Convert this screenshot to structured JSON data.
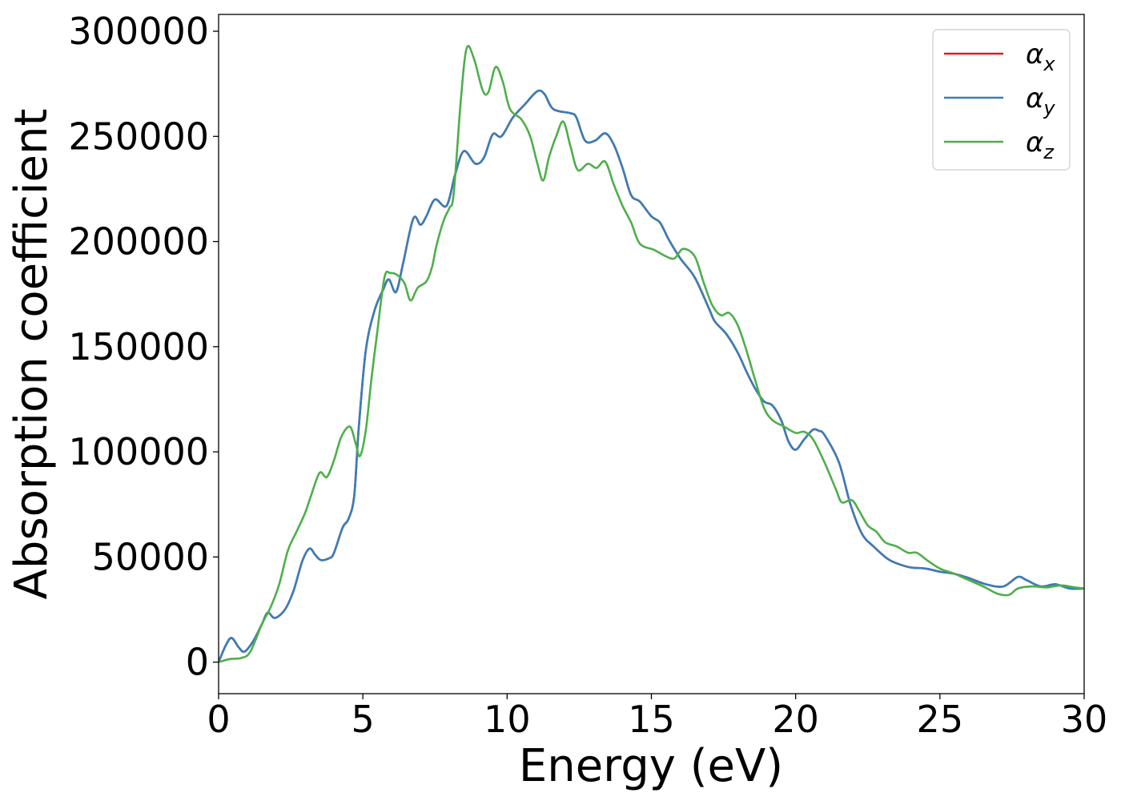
{
  "chart_data": {
    "type": "line",
    "title": "",
    "xlabel": "Energy (eV)",
    "ylabel": "Absorption coefficient",
    "xlim": [
      0,
      30
    ],
    "ylim": [
      -15000,
      308000
    ],
    "xticks": [
      0,
      5,
      10,
      15,
      20,
      25,
      30
    ],
    "yticks": [
      0,
      50000,
      100000,
      150000,
      200000,
      250000,
      300000
    ],
    "grid": false,
    "legend_position": "top-right",
    "series": [
      {
        "name": "x",
        "legend_symbol": "α",
        "color": "#e41a1c",
        "points": [
          [
            0,
            0
          ],
          [
            0.25,
            8000
          ],
          [
            0.45,
            11500
          ],
          [
            0.7,
            7000
          ],
          [
            0.9,
            5000
          ],
          [
            1.2,
            10000
          ],
          [
            1.5,
            18000
          ],
          [
            1.7,
            23500
          ],
          [
            1.95,
            21000
          ],
          [
            2.3,
            25000
          ],
          [
            2.6,
            34000
          ],
          [
            2.9,
            48000
          ],
          [
            3.15,
            54000
          ],
          [
            3.35,
            51000
          ],
          [
            3.55,
            48500
          ],
          [
            3.85,
            49500
          ],
          [
            4.0,
            52000
          ],
          [
            4.3,
            64000
          ],
          [
            4.5,
            68000
          ],
          [
            4.7,
            79000
          ],
          [
            4.85,
            110000
          ],
          [
            5.1,
            148000
          ],
          [
            5.4,
            167000
          ],
          [
            5.7,
            177000
          ],
          [
            5.9,
            182000
          ],
          [
            6.15,
            176000
          ],
          [
            6.4,
            190000
          ],
          [
            6.75,
            211000
          ],
          [
            7.0,
            208000
          ],
          [
            7.2,
            212000
          ],
          [
            7.5,
            220000
          ],
          [
            7.9,
            217000
          ],
          [
            8.2,
            232000
          ],
          [
            8.5,
            243000
          ],
          [
            8.9,
            237000
          ],
          [
            9.2,
            240000
          ],
          [
            9.5,
            251000
          ],
          [
            9.8,
            250000
          ],
          [
            10.2,
            259000
          ],
          [
            10.6,
            265000
          ],
          [
            11.05,
            271500
          ],
          [
            11.3,
            270000
          ],
          [
            11.6,
            263000
          ],
          [
            12.2,
            261000
          ],
          [
            12.4,
            259000
          ],
          [
            12.7,
            248000
          ],
          [
            13.05,
            248000
          ],
          [
            13.4,
            251500
          ],
          [
            13.7,
            246000
          ],
          [
            14.0,
            235000
          ],
          [
            14.3,
            222000
          ],
          [
            14.6,
            219000
          ],
          [
            15.0,
            212000
          ],
          [
            15.3,
            209000
          ],
          [
            15.6,
            201000
          ],
          [
            16.0,
            192000
          ],
          [
            16.5,
            183000
          ],
          [
            17.0,
            168000
          ],
          [
            17.2,
            162000
          ],
          [
            17.6,
            156000
          ],
          [
            18.0,
            147000
          ],
          [
            18.3,
            138000
          ],
          [
            18.6,
            130000
          ],
          [
            18.9,
            124000
          ],
          [
            19.2,
            122000
          ],
          [
            19.5,
            115000
          ],
          [
            19.75,
            105000
          ],
          [
            20.0,
            101000
          ],
          [
            20.3,
            106000
          ],
          [
            20.6,
            110500
          ],
          [
            20.8,
            110000
          ],
          [
            21.0,
            108000
          ],
          [
            21.5,
            95000
          ],
          [
            21.9,
            75000
          ],
          [
            22.3,
            61000
          ],
          [
            22.7,
            55000
          ],
          [
            23.2,
            49000
          ],
          [
            23.6,
            46500
          ],
          [
            24.0,
            45000
          ],
          [
            24.5,
            44500
          ],
          [
            25.0,
            43000
          ],
          [
            25.5,
            42000
          ],
          [
            26.0,
            40000
          ],
          [
            26.6,
            37000
          ],
          [
            27.2,
            36000
          ],
          [
            27.7,
            40500
          ],
          [
            28.0,
            39000
          ],
          [
            28.5,
            36000
          ],
          [
            29.0,
            37000
          ],
          [
            29.5,
            35000
          ],
          [
            30.0,
            35000
          ]
        ]
      },
      {
        "name": "y",
        "legend_symbol": "α",
        "color": "#377eb8",
        "points": [
          [
            0,
            0
          ],
          [
            0.25,
            8000
          ],
          [
            0.45,
            11500
          ],
          [
            0.7,
            7000
          ],
          [
            0.9,
            5000
          ],
          [
            1.2,
            10000
          ],
          [
            1.5,
            18000
          ],
          [
            1.7,
            23500
          ],
          [
            1.95,
            21000
          ],
          [
            2.3,
            25000
          ],
          [
            2.6,
            34000
          ],
          [
            2.9,
            48000
          ],
          [
            3.15,
            54000
          ],
          [
            3.35,
            51000
          ],
          [
            3.55,
            48500
          ],
          [
            3.85,
            49500
          ],
          [
            4.0,
            52000
          ],
          [
            4.3,
            64000
          ],
          [
            4.5,
            68000
          ],
          [
            4.7,
            79000
          ],
          [
            4.85,
            110000
          ],
          [
            5.1,
            148000
          ],
          [
            5.4,
            167000
          ],
          [
            5.7,
            177000
          ],
          [
            5.9,
            182000
          ],
          [
            6.15,
            176000
          ],
          [
            6.4,
            190000
          ],
          [
            6.75,
            211000
          ],
          [
            7.0,
            208000
          ],
          [
            7.2,
            212000
          ],
          [
            7.5,
            220000
          ],
          [
            7.9,
            217000
          ],
          [
            8.2,
            232000
          ],
          [
            8.5,
            243000
          ],
          [
            8.9,
            237000
          ],
          [
            9.2,
            240000
          ],
          [
            9.5,
            251000
          ],
          [
            9.8,
            250000
          ],
          [
            10.2,
            259000
          ],
          [
            10.6,
            265000
          ],
          [
            11.05,
            271500
          ],
          [
            11.3,
            270000
          ],
          [
            11.6,
            263000
          ],
          [
            12.2,
            261000
          ],
          [
            12.4,
            259000
          ],
          [
            12.7,
            248000
          ],
          [
            13.05,
            248000
          ],
          [
            13.4,
            251500
          ],
          [
            13.7,
            246000
          ],
          [
            14.0,
            235000
          ],
          [
            14.3,
            222000
          ],
          [
            14.6,
            219000
          ],
          [
            15.0,
            212000
          ],
          [
            15.3,
            209000
          ],
          [
            15.6,
            201000
          ],
          [
            16.0,
            192000
          ],
          [
            16.5,
            183000
          ],
          [
            17.0,
            168000
          ],
          [
            17.2,
            162000
          ],
          [
            17.6,
            156000
          ],
          [
            18.0,
            147000
          ],
          [
            18.3,
            138000
          ],
          [
            18.6,
            130000
          ],
          [
            18.9,
            124000
          ],
          [
            19.2,
            122000
          ],
          [
            19.5,
            115000
          ],
          [
            19.75,
            105000
          ],
          [
            20.0,
            101000
          ],
          [
            20.3,
            106000
          ],
          [
            20.6,
            110500
          ],
          [
            20.8,
            110000
          ],
          [
            21.0,
            108000
          ],
          [
            21.5,
            95000
          ],
          [
            21.9,
            75000
          ],
          [
            22.3,
            61000
          ],
          [
            22.7,
            55000
          ],
          [
            23.2,
            49000
          ],
          [
            23.6,
            46500
          ],
          [
            24.0,
            45000
          ],
          [
            24.5,
            44500
          ],
          [
            25.0,
            43000
          ],
          [
            25.5,
            42000
          ],
          [
            26.0,
            40000
          ],
          [
            26.6,
            37000
          ],
          [
            27.2,
            36000
          ],
          [
            27.7,
            40500
          ],
          [
            28.0,
            39000
          ],
          [
            28.5,
            36000
          ],
          [
            29.0,
            37000
          ],
          [
            29.5,
            35000
          ],
          [
            30.0,
            35000
          ]
        ]
      },
      {
        "name": "z",
        "legend_symbol": "α",
        "color": "#4daf4a",
        "points": [
          [
            0,
            0
          ],
          [
            0.4,
            1500
          ],
          [
            0.8,
            2000
          ],
          [
            1.1,
            5000
          ],
          [
            1.5,
            18000
          ],
          [
            1.8,
            26000
          ],
          [
            2.1,
            37000
          ],
          [
            2.4,
            53000
          ],
          [
            2.7,
            62000
          ],
          [
            3.0,
            71000
          ],
          [
            3.2,
            79000
          ],
          [
            3.5,
            90000
          ],
          [
            3.75,
            88000
          ],
          [
            4.0,
            96000
          ],
          [
            4.25,
            107000
          ],
          [
            4.55,
            112000
          ],
          [
            4.75,
            104000
          ],
          [
            4.9,
            98000
          ],
          [
            5.1,
            110000
          ],
          [
            5.3,
            135000
          ],
          [
            5.5,
            157000
          ],
          [
            5.75,
            183000
          ],
          [
            5.95,
            185000
          ],
          [
            6.2,
            184000
          ],
          [
            6.45,
            180000
          ],
          [
            6.65,
            172000
          ],
          [
            6.9,
            178000
          ],
          [
            7.2,
            181000
          ],
          [
            7.4,
            188000
          ],
          [
            7.55,
            198000
          ],
          [
            7.8,
            210000
          ],
          [
            8.0,
            216000
          ],
          [
            8.15,
            223000
          ],
          [
            8.4,
            268000
          ],
          [
            8.6,
            292000
          ],
          [
            8.85,
            287000
          ],
          [
            9.15,
            272000
          ],
          [
            9.35,
            271000
          ],
          [
            9.6,
            283000
          ],
          [
            9.85,
            276000
          ],
          [
            10.1,
            263000
          ],
          [
            10.5,
            258000
          ],
          [
            10.8,
            250000
          ],
          [
            11.05,
            237000
          ],
          [
            11.25,
            229000
          ],
          [
            11.45,
            240000
          ],
          [
            11.7,
            250000
          ],
          [
            11.95,
            257000
          ],
          [
            12.2,
            245000
          ],
          [
            12.45,
            234000
          ],
          [
            12.8,
            237000
          ],
          [
            13.1,
            235000
          ],
          [
            13.4,
            238000
          ],
          [
            13.7,
            227000
          ],
          [
            14.0,
            217000
          ],
          [
            14.3,
            209000
          ],
          [
            14.6,
            199000
          ],
          [
            15.1,
            196000
          ],
          [
            15.5,
            193000
          ],
          [
            15.8,
            192000
          ],
          [
            16.1,
            196500
          ],
          [
            16.5,
            193000
          ],
          [
            16.8,
            181000
          ],
          [
            17.1,
            170000
          ],
          [
            17.4,
            165000
          ],
          [
            17.7,
            166000
          ],
          [
            18.0,
            160000
          ],
          [
            18.3,
            148000
          ],
          [
            18.6,
            134000
          ],
          [
            18.9,
            121000
          ],
          [
            19.2,
            115000
          ],
          [
            19.6,
            112000
          ],
          [
            20.0,
            109000
          ],
          [
            20.3,
            109500
          ],
          [
            20.6,
            106000
          ],
          [
            21.0,
            95000
          ],
          [
            21.4,
            82000
          ],
          [
            21.6,
            76000
          ],
          [
            21.95,
            77000
          ],
          [
            22.2,
            72000
          ],
          [
            22.5,
            65000
          ],
          [
            22.8,
            62000
          ],
          [
            23.1,
            57000
          ],
          [
            23.5,
            55000
          ],
          [
            23.9,
            52000
          ],
          [
            24.2,
            52000
          ],
          [
            24.6,
            48000
          ],
          [
            25.0,
            44500
          ],
          [
            25.5,
            42000
          ],
          [
            26.0,
            39000
          ],
          [
            26.5,
            36000
          ],
          [
            27.0,
            32500
          ],
          [
            27.4,
            32000
          ],
          [
            27.7,
            35000
          ],
          [
            28.2,
            36000
          ],
          [
            28.7,
            35500
          ],
          [
            29.2,
            36500
          ],
          [
            29.7,
            35500
          ],
          [
            30.0,
            35000
          ]
        ]
      }
    ]
  }
}
